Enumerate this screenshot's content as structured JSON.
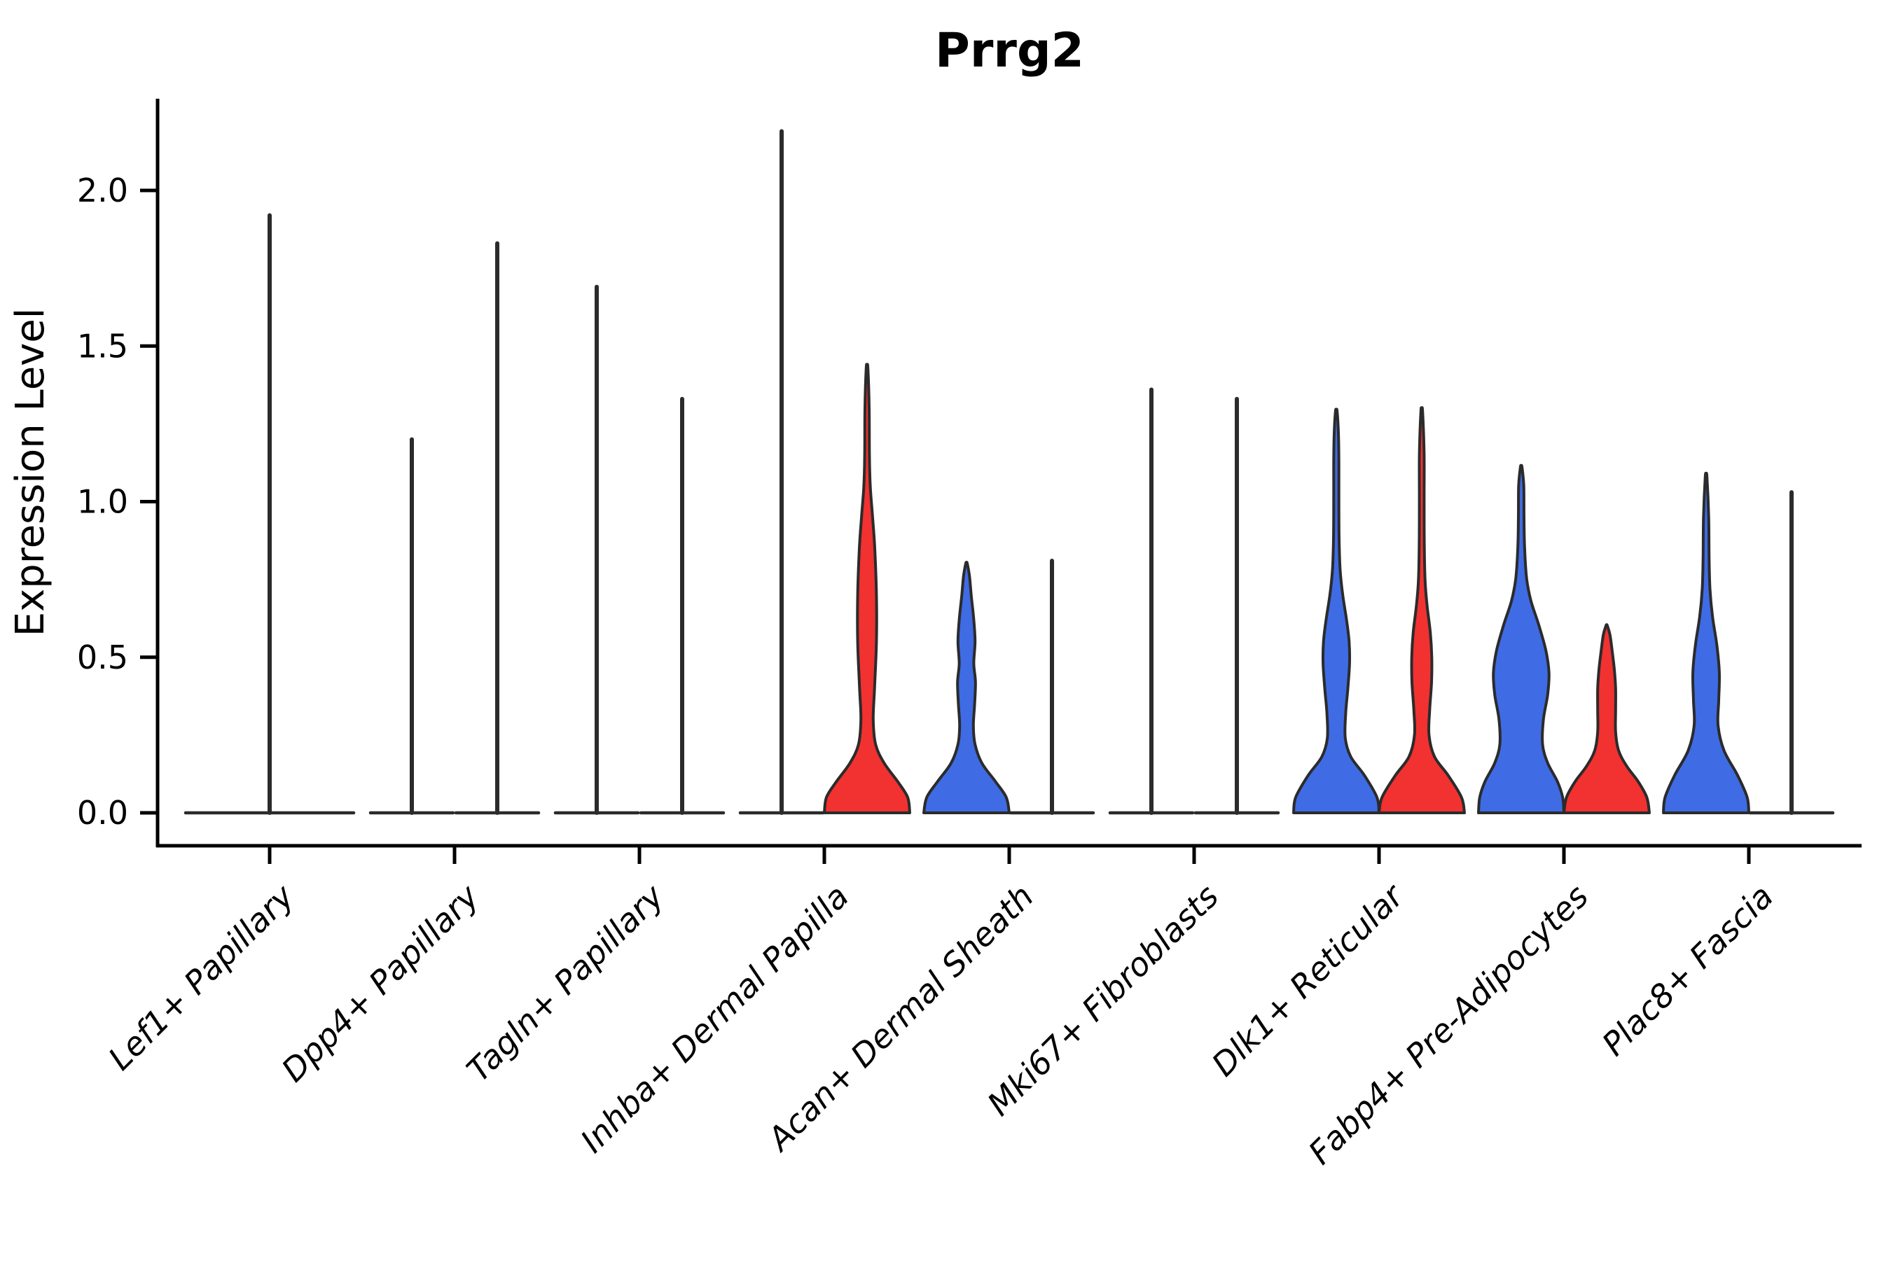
{
  "chart_data": {
    "type": "violin",
    "title": "Prrg2",
    "ylabel": "Expression Level",
    "xlabel": "",
    "grid": false,
    "legend_position": "none",
    "yticks": [
      "0.0",
      "0.5",
      "1.0",
      "1.5",
      "2.0"
    ],
    "ytick_values": [
      0.0,
      0.5,
      1.0,
      1.5,
      2.0
    ],
    "ylim": [
      -0.11,
      2.3
    ],
    "colors": {
      "blue_fill": "#3F6CE5",
      "red_fill": "#F23131",
      "outline": "#2b2b2b",
      "axis": "#000000",
      "background": "#ffffff"
    },
    "categories": [
      "Lef1+ Papillary",
      "Dpp4+ Papillary",
      "Tagln+ Papillary",
      "Inhba+ Dermal Papilla",
      "Acan+ Dermal Sheath",
      "Mki67+ Fibroblasts",
      "Dlk1+ Reticular",
      "Fabp4+ Pre-Adipocytes",
      "Plac8+ Fascia"
    ],
    "violins": [
      {
        "category": "Lef1+ Papillary",
        "position": "center",
        "style": "spike",
        "color": null,
        "max_expression": 1.92
      },
      {
        "category": "Dpp4+ Papillary",
        "position": "left",
        "style": "spike",
        "color": null,
        "max_expression": 1.2
      },
      {
        "category": "Dpp4+ Papillary",
        "position": "right",
        "style": "spike",
        "color": null,
        "max_expression": 1.83
      },
      {
        "category": "Tagln+ Papillary",
        "position": "left",
        "style": "spike",
        "color": null,
        "max_expression": 1.69
      },
      {
        "category": "Tagln+ Papillary",
        "position": "right",
        "style": "spike",
        "color": null,
        "max_expression": 1.33
      },
      {
        "category": "Inhba+ Dermal Papilla",
        "position": "left",
        "style": "spike",
        "color": null,
        "max_expression": 2.19
      },
      {
        "category": "Inhba+ Dermal Papilla",
        "position": "right",
        "style": "violin",
        "color": "red",
        "max_expression": 1.43,
        "profile": [
          [
            0,
            1.0
          ],
          [
            0.05,
            0.95
          ],
          [
            0.1,
            0.72
          ],
          [
            0.16,
            0.4
          ],
          [
            0.22,
            0.2
          ],
          [
            0.3,
            0.145
          ],
          [
            0.4,
            0.175
          ],
          [
            0.55,
            0.22
          ],
          [
            0.7,
            0.22
          ],
          [
            0.85,
            0.18
          ],
          [
            0.95,
            0.13
          ],
          [
            1.05,
            0.075
          ],
          [
            1.15,
            0.055
          ],
          [
            1.3,
            0.05
          ],
          [
            1.43,
            0.02
          ]
        ]
      },
      {
        "category": "Acan+ Dermal Sheath",
        "position": "left",
        "style": "violin",
        "color": "blue",
        "max_expression": 0.8,
        "profile": [
          [
            0,
            1.0
          ],
          [
            0.05,
            0.93
          ],
          [
            0.1,
            0.68
          ],
          [
            0.16,
            0.36
          ],
          [
            0.22,
            0.2
          ],
          [
            0.28,
            0.16
          ],
          [
            0.35,
            0.19
          ],
          [
            0.42,
            0.21
          ],
          [
            0.48,
            0.17
          ],
          [
            0.55,
            0.2
          ],
          [
            0.62,
            0.17
          ],
          [
            0.7,
            0.11
          ],
          [
            0.76,
            0.07
          ],
          [
            0.8,
            0.02
          ]
        ]
      },
      {
        "category": "Acan+ Dermal Sheath",
        "position": "right",
        "style": "spike",
        "color": null,
        "max_expression": 0.81
      },
      {
        "category": "Mki67+ Fibroblasts",
        "position": "left",
        "style": "spike",
        "color": null,
        "max_expression": 1.36
      },
      {
        "category": "Mki67+ Fibroblasts",
        "position": "right",
        "style": "spike",
        "color": null,
        "max_expression": 1.33
      },
      {
        "category": "Dlk1+ Reticular",
        "position": "left",
        "style": "violin",
        "color": "blue",
        "max_expression": 1.29,
        "profile": [
          [
            0,
            1.0
          ],
          [
            0.05,
            0.95
          ],
          [
            0.12,
            0.66
          ],
          [
            0.18,
            0.34
          ],
          [
            0.24,
            0.21
          ],
          [
            0.32,
            0.22
          ],
          [
            0.4,
            0.27
          ],
          [
            0.48,
            0.31
          ],
          [
            0.55,
            0.3
          ],
          [
            0.62,
            0.24
          ],
          [
            0.7,
            0.15
          ],
          [
            0.78,
            0.09
          ],
          [
            0.88,
            0.065
          ],
          [
            1.0,
            0.06
          ],
          [
            1.12,
            0.06
          ],
          [
            1.22,
            0.05
          ],
          [
            1.29,
            0.02
          ]
        ]
      },
      {
        "category": "Dlk1+ Reticular",
        "position": "right",
        "style": "violin",
        "color": "red",
        "max_expression": 1.29,
        "profile": [
          [
            0,
            1.0
          ],
          [
            0.05,
            0.93
          ],
          [
            0.12,
            0.62
          ],
          [
            0.18,
            0.3
          ],
          [
            0.25,
            0.17
          ],
          [
            0.33,
            0.185
          ],
          [
            0.42,
            0.23
          ],
          [
            0.5,
            0.235
          ],
          [
            0.58,
            0.2
          ],
          [
            0.66,
            0.13
          ],
          [
            0.74,
            0.08
          ],
          [
            0.85,
            0.06
          ],
          [
            1.0,
            0.055
          ],
          [
            1.15,
            0.055
          ],
          [
            1.29,
            0.02
          ]
        ]
      },
      {
        "category": "Fabp4+ Pre-Adipocytes",
        "position": "left",
        "style": "violin",
        "color": "blue",
        "max_expression": 1.11,
        "profile": [
          [
            0,
            1.0
          ],
          [
            0.05,
            0.97
          ],
          [
            0.1,
            0.85
          ],
          [
            0.16,
            0.62
          ],
          [
            0.22,
            0.5
          ],
          [
            0.3,
            0.52
          ],
          [
            0.38,
            0.62
          ],
          [
            0.45,
            0.65
          ],
          [
            0.52,
            0.58
          ],
          [
            0.6,
            0.42
          ],
          [
            0.68,
            0.23
          ],
          [
            0.75,
            0.13
          ],
          [
            0.85,
            0.08
          ],
          [
            0.95,
            0.065
          ],
          [
            1.05,
            0.06
          ],
          [
            1.11,
            0.02
          ]
        ]
      },
      {
        "category": "Fabp4+ Pre-Adipocytes",
        "position": "right",
        "style": "violin",
        "color": "red",
        "max_expression": 0.6,
        "profile": [
          [
            0,
            1.0
          ],
          [
            0.05,
            0.94
          ],
          [
            0.1,
            0.74
          ],
          [
            0.15,
            0.47
          ],
          [
            0.2,
            0.28
          ],
          [
            0.26,
            0.21
          ],
          [
            0.33,
            0.21
          ],
          [
            0.4,
            0.21
          ],
          [
            0.46,
            0.18
          ],
          [
            0.52,
            0.13
          ],
          [
            0.57,
            0.08
          ],
          [
            0.6,
            0.02
          ]
        ]
      },
      {
        "category": "Plac8+ Fascia",
        "position": "left",
        "style": "violin",
        "color": "blue",
        "max_expression": 1.08,
        "profile": [
          [
            0,
            1.0
          ],
          [
            0.05,
            0.96
          ],
          [
            0.12,
            0.74
          ],
          [
            0.2,
            0.42
          ],
          [
            0.28,
            0.28
          ],
          [
            0.36,
            0.295
          ],
          [
            0.45,
            0.31
          ],
          [
            0.54,
            0.25
          ],
          [
            0.63,
            0.15
          ],
          [
            0.72,
            0.09
          ],
          [
            0.82,
            0.07
          ],
          [
            0.95,
            0.06
          ],
          [
            1.08,
            0.02
          ]
        ]
      },
      {
        "category": "Plac8+ Fascia",
        "position": "right",
        "style": "spike",
        "color": null,
        "max_expression": 1.03
      }
    ]
  }
}
